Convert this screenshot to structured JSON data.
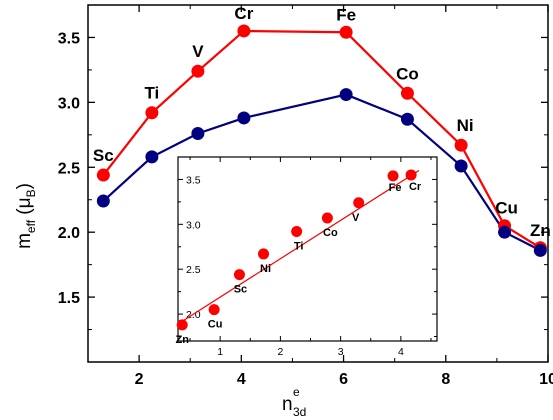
{
  "chart_data": [
    {
      "type": "line",
      "xlabel": {
        "main": "n",
        "sup": "e",
        "sub": "3d"
      },
      "ylabel": {
        "main": "m",
        "sub": "eff",
        "mid": " (μ",
        "sub2": "B",
        "end": ")"
      },
      "xlim": [
        1.0,
        10.0
      ],
      "ylim": [
        1.0,
        3.75
      ],
      "x_ticks": [
        2,
        4,
        6,
        8,
        10
      ],
      "y_ticks": [
        1.5,
        2.0,
        2.5,
        3.0,
        3.5
      ],
      "x_tick_labels": [
        "2",
        "4",
        "6",
        "8",
        "10"
      ],
      "y_tick_labels": [
        "1.5",
        "2.0",
        "2.5",
        "3.0",
        "3.5"
      ],
      "series": [
        {
          "color": "#ff0000",
          "x": [
            1.3,
            2.25,
            3.15,
            4.05,
            6.05,
            7.25,
            8.3,
            9.15,
            9.85
          ],
          "y": [
            2.44,
            2.92,
            3.24,
            3.55,
            3.54,
            3.07,
            2.67,
            2.05,
            1.88
          ],
          "labels": [
            "Sc",
            "Ti",
            "V",
            "Cr",
            "Fe",
            "Co",
            "Ni",
            "Cu",
            "Zn"
          ]
        },
        {
          "color": "#000080",
          "x": [
            1.3,
            2.25,
            3.15,
            4.05,
            6.05,
            7.25,
            8.3,
            9.15,
            9.85
          ],
          "y": [
            2.24,
            2.58,
            2.76,
            2.88,
            3.06,
            2.87,
            2.51,
            2.0,
            1.86
          ]
        }
      ]
    },
    {
      "type": "scatter",
      "xlim": [
        0.3,
        4.6
      ],
      "ylim": [
        1.7,
        3.75
      ],
      "x_ticks": [
        1,
        2,
        3,
        4
      ],
      "y_ticks": [
        2.0,
        2.5,
        3.0,
        3.5
      ],
      "x_tick_labels": [
        "1",
        "2",
        "3",
        "4"
      ],
      "y_tick_labels": [
        "2.0",
        "2.5",
        "3.0",
        "3.5"
      ],
      "points": {
        "color": "#ff0000",
        "x": [
          0.37,
          0.9,
          1.32,
          1.72,
          2.27,
          2.78,
          3.3,
          3.87,
          4.17
        ],
        "y": [
          1.88,
          2.05,
          2.44,
          2.67,
          2.92,
          3.07,
          3.24,
          3.54,
          3.55
        ],
        "labels": [
          "Zn",
          "Cu",
          "Sc",
          "Ni",
          "Ti",
          "Co",
          "V",
          "Fe",
          "Cr"
        ]
      },
      "fit": {
        "color": "#ff0000",
        "x": [
          0.3,
          4.3
        ],
        "y": [
          1.89,
          3.6
        ]
      }
    }
  ]
}
